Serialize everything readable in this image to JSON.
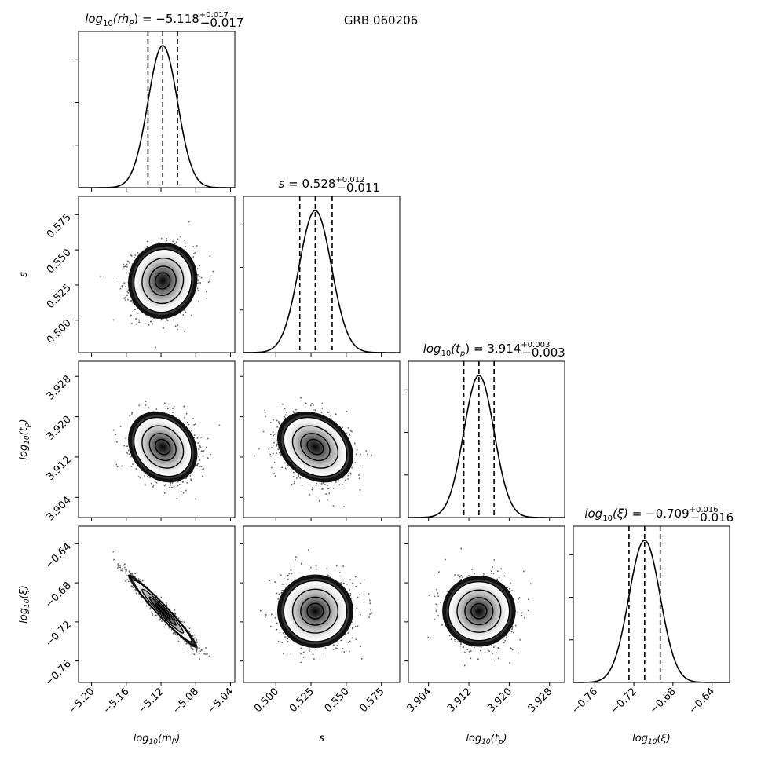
{
  "figure_title": "GRB 060206",
  "chart_data": {
    "type": "corner",
    "title": "GRB 060206",
    "parameters": [
      {
        "label": "log10(ṁP)",
        "label_parts": {
          "pre": "log",
          "sub": "10",
          "mid": "(",
          "mdot": "ṁ",
          "msub": "P",
          "post": ")"
        },
        "median": -5.118,
        "err_plus": 0.017,
        "err_minus": 0.017,
        "title_value": "−5.118",
        "title_plus": "+0.017",
        "title_minus": "−0.017",
        "range": [
          -5.215,
          -5.035
        ],
        "ticks": [
          -5.2,
          -5.16,
          -5.12,
          -5.08,
          -5.04
        ],
        "tick_labels": [
          "−5.20",
          "−5.16",
          "−5.12",
          "−5.08",
          "−5.04"
        ]
      },
      {
        "label": "s",
        "median": 0.528,
        "err_plus": 0.012,
        "err_minus": 0.011,
        "title_value": "0.528",
        "title_plus": "+0.012",
        "title_minus": "−0.011",
        "range": [
          0.477,
          0.588
        ],
        "ticks": [
          0.5,
          0.525,
          0.55,
          0.575
        ],
        "tick_labels": [
          "0.500",
          "0.525",
          "0.550",
          "0.575"
        ]
      },
      {
        "label": "log10(tp)",
        "label_parts": {
          "pre": "log",
          "sub": "10",
          "mid": "(t",
          "psub": "p",
          "post": ")"
        },
        "median": 3.914,
        "err_plus": 0.003,
        "err_minus": 0.003,
        "title_value": "3.914",
        "title_plus": "+0.003",
        "title_minus": "−0.003",
        "range": [
          3.9,
          3.931
        ],
        "ticks": [
          3.904,
          3.912,
          3.92,
          3.928
        ],
        "tick_labels": [
          "3.904",
          "3.912",
          "3.920",
          "3.928"
        ]
      },
      {
        "label": "log10(ξ)",
        "label_parts": {
          "pre": "log",
          "sub": "10",
          "mid": "(ξ)"
        },
        "median": -0.709,
        "err_plus": 0.016,
        "err_minus": 0.016,
        "title_value": "−0.709",
        "title_plus": "+0.016",
        "title_minus": "−0.016",
        "range": [
          -0.782,
          -0.622
        ],
        "ticks": [
          -0.76,
          -0.72,
          -0.68,
          -0.64
        ],
        "tick_labels": [
          "−0.76",
          "−0.72",
          "−0.68",
          "−0.64"
        ]
      }
    ],
    "correlations": [
      {
        "pair": [
          0,
          1
        ],
        "rho": 0.05
      },
      {
        "pair": [
          0,
          2
        ],
        "rho": -0.2
      },
      {
        "pair": [
          1,
          2
        ],
        "rho": -0.25
      },
      {
        "pair": [
          0,
          3
        ],
        "rho": -0.97
      },
      {
        "pair": [
          1,
          3
        ],
        "rho": 0.0
      },
      {
        "pair": [
          2,
          3
        ],
        "rho": 0.0
      }
    ],
    "quantile_lines": "dashed",
    "colors": {
      "contour": "#000000",
      "line": "#000000",
      "background": "#ffffff"
    }
  }
}
